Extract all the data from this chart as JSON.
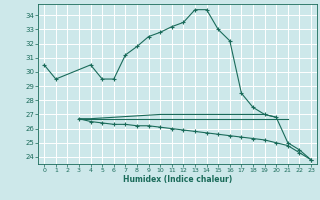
{
  "xlabel": "Humidex (Indice chaleur)",
  "x": [
    0,
    1,
    2,
    3,
    4,
    5,
    6,
    7,
    8,
    9,
    10,
    11,
    12,
    13,
    14,
    15,
    16,
    17,
    18,
    19,
    20,
    21,
    22,
    23
  ],
  "line1_y": [
    30.5,
    29.5,
    null,
    null,
    30.5,
    29.5,
    29.5,
    31.2,
    31.8,
    32.5,
    32.8,
    33.2,
    33.5,
    34.4,
    34.4,
    33.0,
    32.2,
    28.5,
    27.5,
    27.0,
    26.8,
    25.0,
    24.5,
    23.8
  ],
  "line2_y": [
    null,
    null,
    null,
    26.7,
    26.5,
    26.4,
    26.3,
    26.3,
    26.2,
    26.2,
    26.1,
    26.0,
    25.9,
    25.8,
    25.7,
    25.6,
    25.5,
    25.4,
    25.3,
    25.2,
    25.0,
    24.8,
    24.3,
    23.8
  ],
  "line3_y": [
    null,
    null,
    null,
    26.7,
    26.7,
    26.7,
    26.7,
    26.7,
    26.7,
    26.7,
    26.7,
    26.7,
    26.7,
    26.7,
    26.7,
    26.7,
    26.7,
    26.7,
    26.7,
    26.7,
    26.7,
    26.7,
    null,
    null
  ],
  "line4_y": [
    null,
    null,
    null,
    26.7,
    26.7,
    26.75,
    26.8,
    26.85,
    26.9,
    26.95,
    27.0,
    27.0,
    27.0,
    27.0,
    27.0,
    27.0,
    27.0,
    27.0,
    27.0,
    27.0,
    26.8,
    null,
    null,
    null
  ],
  "ylim": [
    23.5,
    34.8
  ],
  "xlim": [
    -0.5,
    23.5
  ],
  "yticks": [
    24,
    25,
    26,
    27,
    28,
    29,
    30,
    31,
    32,
    33,
    34
  ],
  "xticks": [
    0,
    1,
    2,
    3,
    4,
    5,
    6,
    7,
    8,
    9,
    10,
    11,
    12,
    13,
    14,
    15,
    16,
    17,
    18,
    19,
    20,
    21,
    22,
    23
  ],
  "line_color": "#1a6b5a",
  "bg_color": "#cde8ea",
  "grid_color": "#ffffff",
  "marker": "+"
}
